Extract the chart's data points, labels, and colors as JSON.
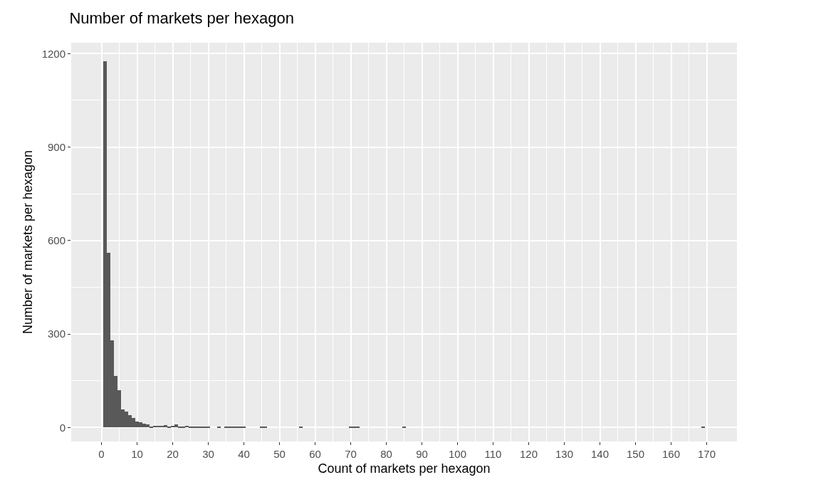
{
  "chart_data": {
    "type": "histogram",
    "title": "Number of markets per hexagon",
    "xlabel": "Count of markets per hexagon",
    "ylabel": "Number of markets per hexagon",
    "color": "#595959",
    "bins": [
      0.5,
      1.5,
      2.5,
      3.5,
      4.5,
      5.5,
      6.5,
      7.5,
      8.5,
      9.5,
      10.5,
      11.5,
      12.5,
      13.5,
      14.5,
      15.5,
      16.5,
      17.5,
      18.5,
      19.5,
      20.5,
      21.5,
      22.5,
      23.5,
      24.5,
      25.5,
      26.5,
      27.5,
      28.5,
      29.5,
      30.5,
      31.5,
      32.5,
      33.5,
      34.5,
      35.5,
      36.5,
      37.5,
      38.5,
      39.5,
      40.5,
      41.5,
      42.5,
      43.5,
      44.5,
      45.5,
      46.5,
      47.5,
      48.5,
      49.5,
      50.5,
      51.5,
      52.5,
      53.5,
      54.5,
      55.5,
      56.5,
      57.5,
      58.5,
      59.5,
      60.5,
      61.5,
      62.5,
      63.5,
      64.5,
      65.5,
      66.5,
      67.5,
      68.5,
      69.5,
      70.5,
      71.5,
      72.5,
      73.5,
      74.5,
      75.5,
      76.5,
      77.5,
      78.5,
      79.5,
      80.5,
      81.5,
      82.5,
      83.5,
      84.5,
      85.5,
      86.5,
      87.5,
      88.5,
      89.5,
      90.5,
      91.5,
      92.5,
      93.5,
      94.5,
      95.5,
      96.5,
      97.5,
      98.5,
      99.5,
      100.5,
      101.5,
      102.5,
      103.5,
      104.5,
      105.5,
      106.5,
      107.5,
      108.5,
      109.5,
      110.5,
      111.5,
      112.5,
      113.5,
      114.5,
      115.5,
      116.5,
      117.5,
      118.5,
      119.5,
      120.5,
      121.5,
      122.5,
      123.5,
      124.5,
      125.5,
      126.5,
      127.5,
      128.5,
      129.5,
      130.5,
      131.5,
      132.5,
      133.5,
      134.5,
      135.5,
      136.5,
      137.5,
      138.5,
      139.5,
      140.5,
      141.5,
      142.5,
      143.5,
      144.5,
      145.5,
      146.5,
      147.5,
      148.5,
      149.5,
      150.5,
      151.5,
      152.5,
      153.5,
      154.5,
      155.5,
      156.5,
      157.5,
      158.5,
      159.5,
      160.5,
      161.5,
      162.5,
      163.5,
      164.5,
      165.5,
      166.5,
      167.5,
      168.5,
      169.5,
      170.5
    ],
    "values": [
      1175,
      560,
      280,
      165,
      120,
      57,
      50,
      40,
      30,
      20,
      16,
      13,
      10,
      3,
      5,
      6,
      6,
      7,
      3,
      5,
      10,
      4,
      2,
      6,
      2,
      3,
      4,
      2,
      1,
      1,
      0,
      0,
      1,
      0,
      2,
      2,
      2,
      2,
      2,
      1,
      0,
      0,
      0,
      0,
      2,
      1,
      0,
      0,
      0,
      0,
      0,
      0,
      0,
      0,
      0,
      2,
      0,
      0,
      0,
      0,
      0,
      0,
      0,
      0,
      0,
      0,
      0,
      0,
      0,
      2,
      2,
      1,
      0,
      0,
      0,
      0,
      0,
      0,
      0,
      0,
      0,
      0,
      0,
      0,
      2,
      0,
      0,
      0,
      0,
      0,
      0,
      0,
      0,
      0,
      0,
      0,
      0,
      0,
      0,
      0,
      0,
      0,
      0,
      0,
      0,
      0,
      0,
      0,
      0,
      0,
      0,
      0,
      0,
      0,
      0,
      0,
      0,
      0,
      0,
      0,
      0,
      0,
      0,
      0,
      0,
      0,
      0,
      0,
      0,
      0,
      0,
      0,
      0,
      0,
      0,
      0,
      0,
      0,
      0,
      0,
      0,
      0,
      0,
      0,
      0,
      0,
      0,
      0,
      0,
      0,
      0,
      0,
      0,
      0,
      0,
      0,
      0,
      0,
      0,
      0,
      0,
      0,
      0,
      0,
      0,
      0,
      0,
      0,
      2,
      0
    ],
    "xlim": [
      -8.5,
      178.5
    ],
    "xticks": [
      0,
      10,
      20,
      30,
      40,
      50,
      60,
      70,
      80,
      90,
      100,
      110,
      120,
      130,
      140,
      150,
      160,
      170
    ],
    "ylim": [
      -45,
      1235
    ],
    "yticks": [
      0,
      300,
      600,
      900,
      1200
    ],
    "grid": true
  }
}
